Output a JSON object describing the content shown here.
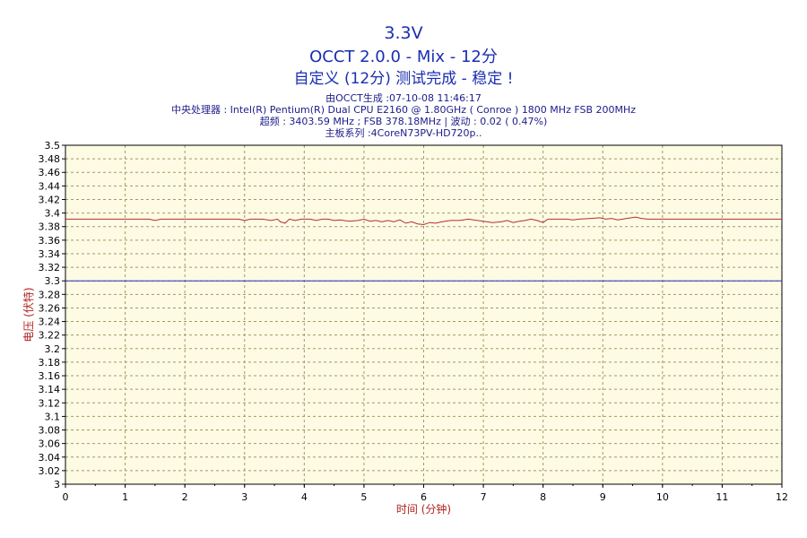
{
  "header": {
    "title": "3.3V",
    "subtitle": "OCCT 2.0.0 - Mix - 12分",
    "status": "自定义 (12分) 测试完成 - 稳定 !",
    "info_lines": [
      "由OCCT生成 :07-10-08 11:46:17",
      "中央处理器 : Intel(R) Pentium(R) Dual CPU E2160 @ 1.80GHz ( Conroe ) 1800 MHz FSB 200MHz",
      "超频 : 3403.59 MHz ; FSB 378.18MHz | 波动 : 0.02 ( 0.47%)",
      "主板系列 :4CoreN73PV-HD720p.."
    ]
  },
  "chart_data": {
    "type": "line",
    "xlabel": "时间 (分钟)",
    "ylabel": "电压 (伏特)",
    "xlim": [
      0,
      12
    ],
    "ylim": [
      3.0,
      3.5
    ],
    "x_ticks": [
      "0",
      "1",
      "2",
      "3",
      "4",
      "5",
      "6",
      "7",
      "8",
      "9",
      "10",
      "11",
      "12"
    ],
    "y_ticks": [
      "3",
      "3.02",
      "3.04",
      "3.06",
      "3.08",
      "3.1",
      "3.12",
      "3.14",
      "3.16",
      "3.18",
      "3.2",
      "3.22",
      "3.24",
      "3.26",
      "3.28",
      "3.3",
      "3.32",
      "3.34",
      "3.36",
      "3.38",
      "3.4",
      "3.42",
      "3.44",
      "3.46",
      "3.48",
      "3.5"
    ],
    "grid": true,
    "colors": {
      "background": "#fdfbe3",
      "grid": "#a09a6a",
      "measured_line": "#b03030",
      "reference_line": "#2233c0",
      "axis_text": "#000000",
      "axis_label": "#b02020"
    },
    "series": [
      {
        "values": [
          [
            0,
            3.391
          ],
          [
            0.5,
            3.391
          ],
          [
            1.0,
            3.391
          ],
          [
            1.4,
            3.391
          ],
          [
            1.5,
            3.389
          ],
          [
            1.6,
            3.391
          ],
          [
            2.0,
            3.391
          ],
          [
            2.5,
            3.391
          ],
          [
            2.9,
            3.391
          ],
          [
            3.0,
            3.389
          ],
          [
            3.1,
            3.391
          ],
          [
            3.3,
            3.391
          ],
          [
            3.45,
            3.389
          ],
          [
            3.55,
            3.391
          ],
          [
            3.6,
            3.387
          ],
          [
            3.68,
            3.385
          ],
          [
            3.75,
            3.391
          ],
          [
            3.85,
            3.389
          ],
          [
            3.95,
            3.391
          ],
          [
            4.1,
            3.391
          ],
          [
            4.2,
            3.389
          ],
          [
            4.3,
            3.391
          ],
          [
            4.4,
            3.391
          ],
          [
            4.5,
            3.389
          ],
          [
            4.6,
            3.39
          ],
          [
            4.75,
            3.388
          ],
          [
            4.9,
            3.389
          ],
          [
            5.0,
            3.391
          ],
          [
            5.1,
            3.388
          ],
          [
            5.2,
            3.389
          ],
          [
            5.3,
            3.387
          ],
          [
            5.4,
            3.389
          ],
          [
            5.5,
            3.387
          ],
          [
            5.6,
            3.39
          ],
          [
            5.7,
            3.385
          ],
          [
            5.8,
            3.387
          ],
          [
            5.9,
            3.384
          ],
          [
            6.0,
            3.383
          ],
          [
            6.1,
            3.386
          ],
          [
            6.2,
            3.385
          ],
          [
            6.3,
            3.387
          ],
          [
            6.45,
            3.389
          ],
          [
            6.6,
            3.389
          ],
          [
            6.75,
            3.391
          ],
          [
            6.9,
            3.389
          ],
          [
            7.0,
            3.388
          ],
          [
            7.15,
            3.386
          ],
          [
            7.3,
            3.387
          ],
          [
            7.4,
            3.389
          ],
          [
            7.5,
            3.386
          ],
          [
            7.6,
            3.388
          ],
          [
            7.7,
            3.389
          ],
          [
            7.8,
            3.391
          ],
          [
            7.9,
            3.389
          ],
          [
            8.0,
            3.386
          ],
          [
            8.08,
            3.391
          ],
          [
            8.2,
            3.391
          ],
          [
            8.4,
            3.391
          ],
          [
            8.5,
            3.39
          ],
          [
            8.6,
            3.391
          ],
          [
            8.8,
            3.392
          ],
          [
            8.95,
            3.393
          ],
          [
            9.05,
            3.391
          ],
          [
            9.15,
            3.392
          ],
          [
            9.25,
            3.39
          ],
          [
            9.4,
            3.392
          ],
          [
            9.55,
            3.394
          ],
          [
            9.65,
            3.392
          ],
          [
            9.75,
            3.391
          ],
          [
            10.0,
            3.391
          ],
          [
            10.5,
            3.391
          ],
          [
            11.0,
            3.391
          ],
          [
            11.5,
            3.391
          ],
          [
            12.0,
            3.391
          ]
        ]
      },
      {
        "values": [
          [
            0,
            3.3
          ],
          [
            12,
            3.3
          ]
        ]
      }
    ]
  }
}
